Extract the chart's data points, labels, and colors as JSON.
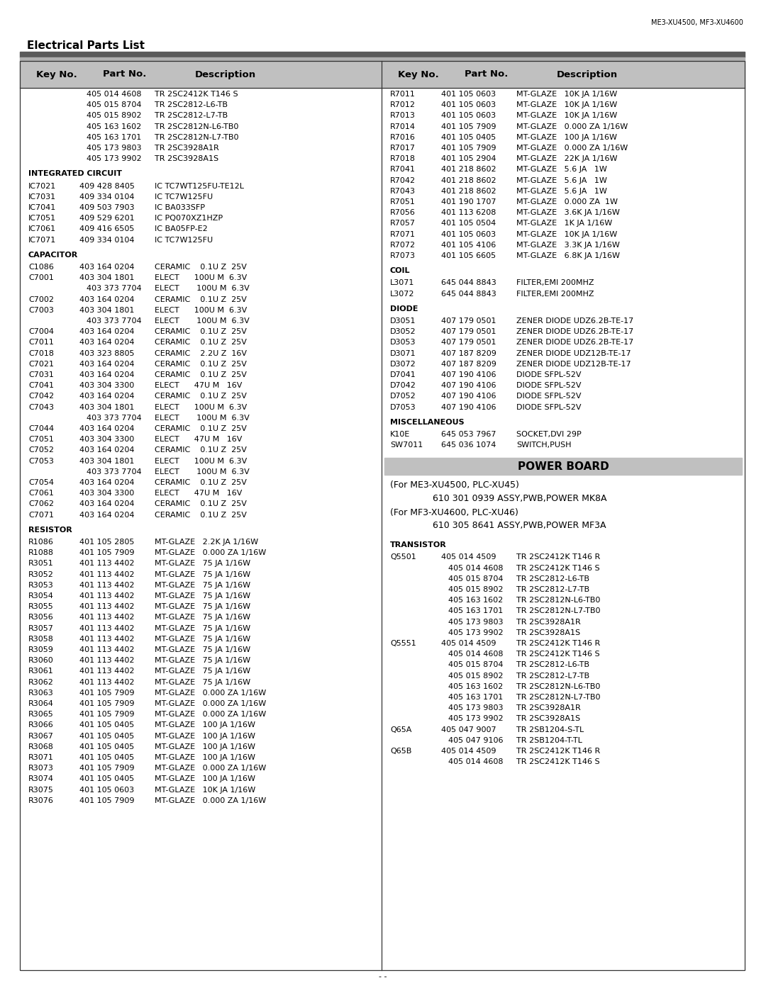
{
  "page_label": "ME3-XU4500, MF3-XU4600",
  "title": "Electrical Parts List",
  "left_column": [
    [
      "",
      "405 014 4608",
      "TR 2SC2412K T146 S"
    ],
    [
      "",
      "405 015 8704",
      "TR 2SC2812-L6-TB"
    ],
    [
      "",
      "405 015 8902",
      "TR 2SC2812-L7-TB"
    ],
    [
      "",
      "405 163 1602",
      "TR 2SC2812N-L6-TB0"
    ],
    [
      "",
      "405 163 1701",
      "TR 2SC2812N-L7-TB0"
    ],
    [
      "",
      "405 173 9803",
      "TR 2SC3928A1R"
    ],
    [
      "",
      "405 173 9902",
      "TR 2SC3928A1S"
    ],
    [
      "INTEGRATED CIRCUIT",
      "",
      ""
    ],
    [
      "IC7021",
      "409 428 8405",
      "IC TC7WT125FU-TE12L"
    ],
    [
      "IC7031",
      "409 334 0104",
      "IC TC7W125FU"
    ],
    [
      "IC7041",
      "409 503 7903",
      "IC BA033SFP"
    ],
    [
      "IC7051",
      "409 529 6201",
      "IC PQ070XZ1HZP"
    ],
    [
      "IC7061",
      "409 416 6505",
      "IC BA05FP-E2"
    ],
    [
      "IC7071",
      "409 334 0104",
      "IC TC7W125FU"
    ],
    [
      "CAPACITOR",
      "",
      ""
    ],
    [
      "C1086",
      "403 164 0204",
      "CERAMIC    0.1U Z  25V"
    ],
    [
      "C7001",
      "403 304 1801",
      "ELECT      100U M  6.3V"
    ],
    [
      "",
      "403 373 7704",
      "ELECT       100U M  6.3V"
    ],
    [
      "C7002",
      "403 164 0204",
      "CERAMIC    0.1U Z  25V"
    ],
    [
      "C7003",
      "403 304 1801",
      "ELECT      100U M  6.3V"
    ],
    [
      "",
      "403 373 7704",
      "ELECT       100U M  6.3V"
    ],
    [
      "C7004",
      "403 164 0204",
      "CERAMIC    0.1U Z  25V"
    ],
    [
      "C7011",
      "403 164 0204",
      "CERAMIC    0.1U Z  25V"
    ],
    [
      "C7018",
      "403 323 8805",
      "CERAMIC    2.2U Z  16V"
    ],
    [
      "C7021",
      "403 164 0204",
      "CERAMIC    0.1U Z  25V"
    ],
    [
      "C7031",
      "403 164 0204",
      "CERAMIC    0.1U Z  25V"
    ],
    [
      "C7041",
      "403 304 3300",
      "ELECT      47U M   16V"
    ],
    [
      "C7042",
      "403 164 0204",
      "CERAMIC    0.1U Z  25V"
    ],
    [
      "C7043",
      "403 304 1801",
      "ELECT      100U M  6.3V"
    ],
    [
      "",
      "403 373 7704",
      "ELECT       100U M  6.3V"
    ],
    [
      "C7044",
      "403 164 0204",
      "CERAMIC    0.1U Z  25V"
    ],
    [
      "C7051",
      "403 304 3300",
      "ELECT      47U M   16V"
    ],
    [
      "C7052",
      "403 164 0204",
      "CERAMIC    0.1U Z  25V"
    ],
    [
      "C7053",
      "403 304 1801",
      "ELECT      100U M  6.3V"
    ],
    [
      "",
      "403 373 7704",
      "ELECT       100U M  6.3V"
    ],
    [
      "C7054",
      "403 164 0204",
      "CERAMIC    0.1U Z  25V"
    ],
    [
      "C7061",
      "403 304 3300",
      "ELECT      47U M   16V"
    ],
    [
      "C7062",
      "403 164 0204",
      "CERAMIC    0.1U Z  25V"
    ],
    [
      "C7071",
      "403 164 0204",
      "CERAMIC    0.1U Z  25V"
    ],
    [
      "RESISTOR",
      "",
      ""
    ],
    [
      "R1086",
      "401 105 2805",
      "MT-GLAZE   2.2K JA 1/16W"
    ],
    [
      "R1088",
      "401 105 7909",
      "MT-GLAZE   0.000 ZA 1/16W"
    ],
    [
      "R3051",
      "401 113 4402",
      "MT-GLAZE   75 JA 1/16W"
    ],
    [
      "R3052",
      "401 113 4402",
      "MT-GLAZE   75 JA 1/16W"
    ],
    [
      "R3053",
      "401 113 4402",
      "MT-GLAZE   75 JA 1/16W"
    ],
    [
      "R3054",
      "401 113 4402",
      "MT-GLAZE   75 JA 1/16W"
    ],
    [
      "R3055",
      "401 113 4402",
      "MT-GLAZE   75 JA 1/16W"
    ],
    [
      "R3056",
      "401 113 4402",
      "MT-GLAZE   75 JA 1/16W"
    ],
    [
      "R3057",
      "401 113 4402",
      "MT-GLAZE   75 JA 1/16W"
    ],
    [
      "R3058",
      "401 113 4402",
      "MT-GLAZE   75 JA 1/16W"
    ],
    [
      "R3059",
      "401 113 4402",
      "MT-GLAZE   75 JA 1/16W"
    ],
    [
      "R3060",
      "401 113 4402",
      "MT-GLAZE   75 JA 1/16W"
    ],
    [
      "R3061",
      "401 113 4402",
      "MT-GLAZE   75 JA 1/16W"
    ],
    [
      "R3062",
      "401 113 4402",
      "MT-GLAZE   75 JA 1/16W"
    ],
    [
      "R3063",
      "401 105 7909",
      "MT-GLAZE   0.000 ZA 1/16W"
    ],
    [
      "R3064",
      "401 105 7909",
      "MT-GLAZE   0.000 ZA 1/16W"
    ],
    [
      "R3065",
      "401 105 7909",
      "MT-GLAZE   0.000 ZA 1/16W"
    ],
    [
      "R3066",
      "401 105 0405",
      "MT-GLAZE   100 JA 1/16W"
    ],
    [
      "R3067",
      "401 105 0405",
      "MT-GLAZE   100 JA 1/16W"
    ],
    [
      "R3068",
      "401 105 0405",
      "MT-GLAZE   100 JA 1/16W"
    ],
    [
      "R3071",
      "401 105 0405",
      "MT-GLAZE   100 JA 1/16W"
    ],
    [
      "R3073",
      "401 105 7909",
      "MT-GLAZE   0.000 ZA 1/16W"
    ],
    [
      "R3074",
      "401 105 0405",
      "MT-GLAZE   100 JA 1/16W"
    ],
    [
      "R3075",
      "401 105 0603",
      "MT-GLAZE   10K JA 1/16W"
    ],
    [
      "R3076",
      "401 105 7909",
      "MT-GLAZE   0.000 ZA 1/16W"
    ]
  ],
  "right_column": [
    [
      "R7011",
      "401 105 0603",
      "MT-GLAZE   10K JA 1/16W"
    ],
    [
      "R7012",
      "401 105 0603",
      "MT-GLAZE   10K JA 1/16W"
    ],
    [
      "R7013",
      "401 105 0603",
      "MT-GLAZE   10K JA 1/16W"
    ],
    [
      "R7014",
      "401 105 7909",
      "MT-GLAZE   0.000 ZA 1/16W"
    ],
    [
      "R7016",
      "401 105 0405",
      "MT-GLAZE   100 JA 1/16W"
    ],
    [
      "R7017",
      "401 105 7909",
      "MT-GLAZE   0.000 ZA 1/16W"
    ],
    [
      "R7018",
      "401 105 2904",
      "MT-GLAZE   22K JA 1/16W"
    ],
    [
      "R7041",
      "401 218 8602",
      "MT-GLAZE   5.6 JA   1W"
    ],
    [
      "R7042",
      "401 218 8602",
      "MT-GLAZE   5.6 JA   1W"
    ],
    [
      "R7043",
      "401 218 8602",
      "MT-GLAZE   5.6 JA   1W"
    ],
    [
      "R7051",
      "401 190 1707",
      "MT-GLAZE   0.000 ZA  1W"
    ],
    [
      "R7056",
      "401 113 6208",
      "MT-GLAZE   3.6K JA 1/16W"
    ],
    [
      "R7057",
      "401 105 0504",
      "MT-GLAZE   1K JA 1/16W"
    ],
    [
      "R7071",
      "401 105 0603",
      "MT-GLAZE   10K JA 1/16W"
    ],
    [
      "R7072",
      "401 105 4106",
      "MT-GLAZE   3.3K JA 1/16W"
    ],
    [
      "R7073",
      "401 105 6605",
      "MT-GLAZE   6.8K JA 1/16W"
    ],
    [
      "COIL",
      "",
      ""
    ],
    [
      "L3071",
      "645 044 8843",
      "FILTER,EMI 200MHZ"
    ],
    [
      "L3072",
      "645 044 8843",
      "FILTER,EMI 200MHZ"
    ],
    [
      "DIODE",
      "",
      ""
    ],
    [
      "D3051",
      "407 179 0501",
      "ZENER DIODE UDZ6.2B-TE-17"
    ],
    [
      "D3052",
      "407 179 0501",
      "ZENER DIODE UDZ6.2B-TE-17"
    ],
    [
      "D3053",
      "407 179 0501",
      "ZENER DIODE UDZ6.2B-TE-17"
    ],
    [
      "D3071",
      "407 187 8209",
      "ZENER DIODE UDZ12B-TE-17"
    ],
    [
      "D3072",
      "407 187 8209",
      "ZENER DIODE UDZ12B-TE-17"
    ],
    [
      "D7041",
      "407 190 4106",
      "DIODE SFPL-52V"
    ],
    [
      "D7042",
      "407 190 4106",
      "DIODE SFPL-52V"
    ],
    [
      "D7052",
      "407 190 4106",
      "DIODE SFPL-52V"
    ],
    [
      "D7053",
      "407 190 4106",
      "DIODE SFPL-52V"
    ],
    [
      "MISCELLANEOUS",
      "",
      ""
    ],
    [
      "K10E",
      "645 053 7967",
      "SOCKET,DVI 29P"
    ],
    [
      "SW7011",
      "645 036 1074",
      "SWITCH,PUSH"
    ],
    [
      "POWER_BOARD_HEADER",
      "",
      ""
    ],
    [
      "FOR_ME3",
      "",
      ""
    ],
    [
      "610_ME3",
      "",
      ""
    ],
    [
      "FOR_MF3",
      "",
      ""
    ],
    [
      "610_MF3",
      "",
      ""
    ],
    [
      "TRANSISTOR",
      "",
      ""
    ],
    [
      "Q5501",
      "405 014 4509",
      "TR 2SC2412K T146 R"
    ],
    [
      "",
      "405 014 4608",
      "TR 2SC2412K T146 S"
    ],
    [
      "",
      "405 015 8704",
      "TR 2SC2812-L6-TB"
    ],
    [
      "",
      "405 015 8902",
      "TR 2SC2812-L7-TB"
    ],
    [
      "",
      "405 163 1602",
      "TR 2SC2812N-L6-TB0"
    ],
    [
      "",
      "405 163 1701",
      "TR 2SC2812N-L7-TB0"
    ],
    [
      "",
      "405 173 9803",
      "TR 2SC3928A1R"
    ],
    [
      "",
      "405 173 9902",
      "TR 2SC3928A1S"
    ],
    [
      "Q5551",
      "405 014 4509",
      "TR 2SC2412K T146 R"
    ],
    [
      "",
      "405 014 4608",
      "TR 2SC2412K T146 S"
    ],
    [
      "",
      "405 015 8704",
      "TR 2SC2812-L6-TB"
    ],
    [
      "",
      "405 015 8902",
      "TR 2SC2812-L7-TB"
    ],
    [
      "",
      "405 163 1602",
      "TR 2SC2812N-L6-TB0"
    ],
    [
      "",
      "405 163 1701",
      "TR 2SC2812N-L7-TB0"
    ],
    [
      "",
      "405 173 9803",
      "TR 2SC3928A1R"
    ],
    [
      "",
      "405 173 9902",
      "TR 2SC3928A1S"
    ],
    [
      "Q65A",
      "405 047 9007",
      "TR 2SB1204-S-TL"
    ],
    [
      "",
      "405 047 9106",
      "TR 2SB1204-T-TL"
    ],
    [
      "Q65B",
      "405 014 4509",
      "TR 2SC2412K T146 R"
    ],
    [
      "",
      "405 014 4608",
      "TR 2SC2412K T146 S"
    ]
  ],
  "footer": "- -"
}
